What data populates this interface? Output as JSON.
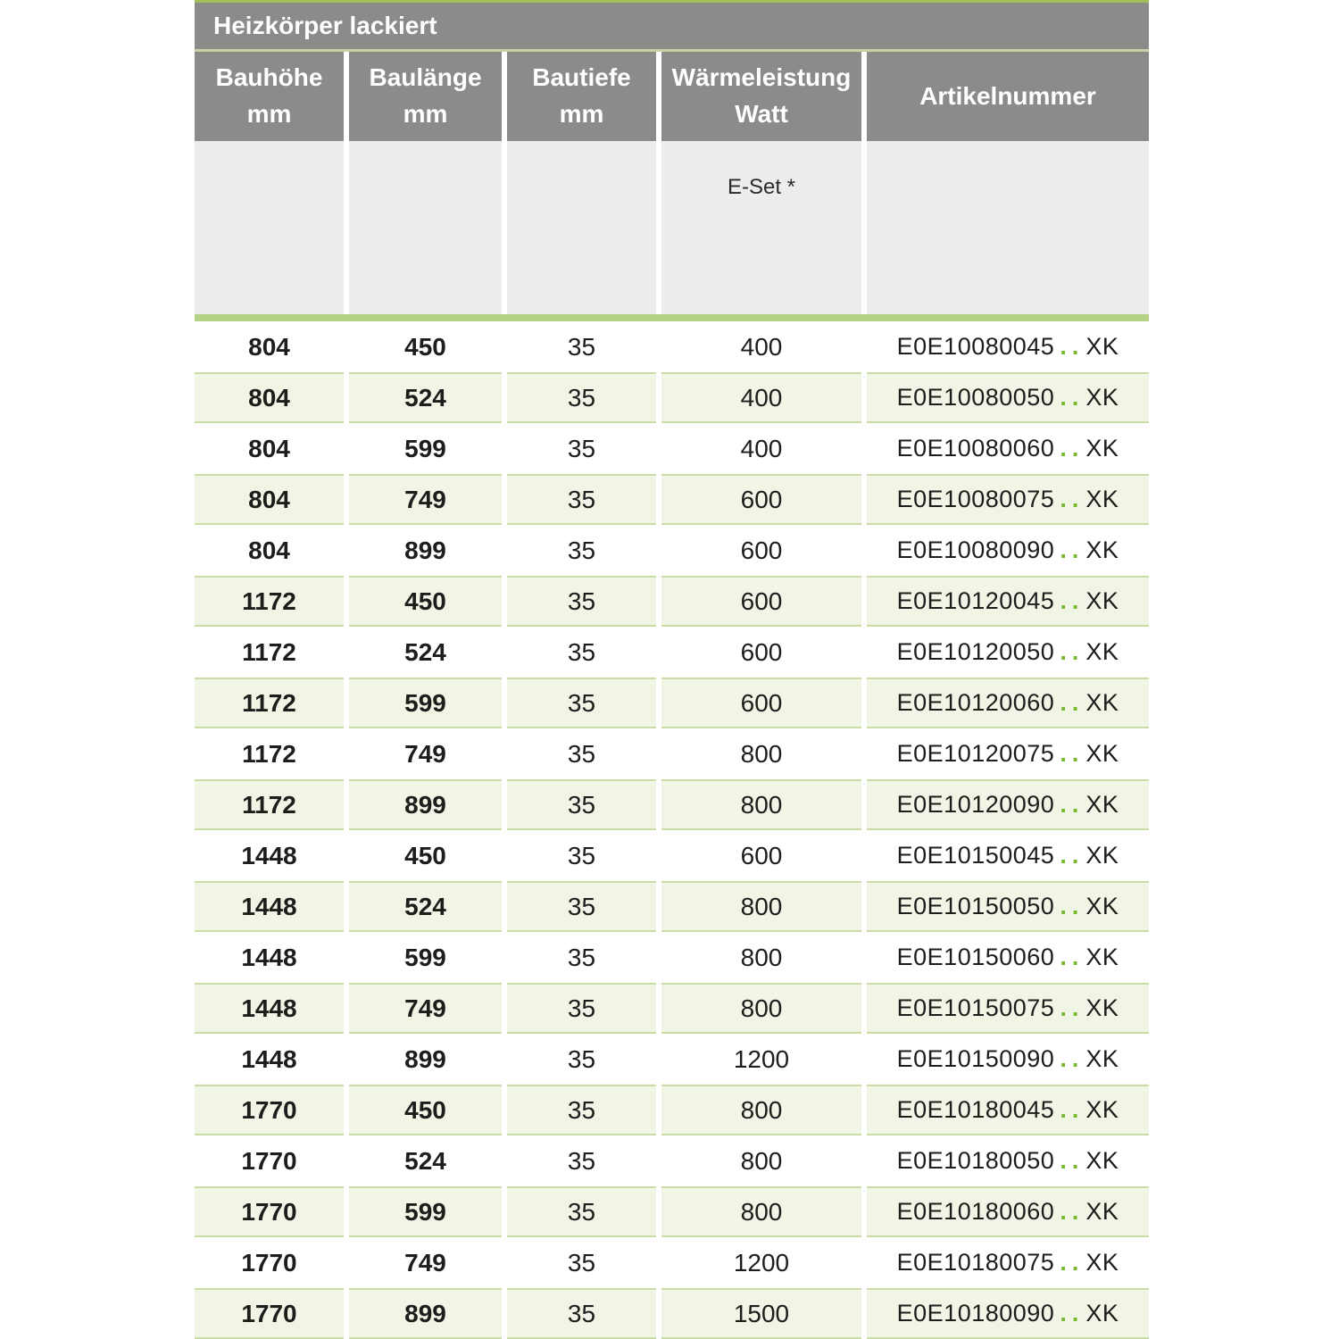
{
  "title": "Heizkörper lackiert",
  "columns": [
    {
      "label": "Bauhöhe",
      "sub": "mm"
    },
    {
      "label": "Baulänge",
      "sub": "mm"
    },
    {
      "label": "Bautiefe",
      "sub": "mm"
    },
    {
      "label": "Wärmeleistung",
      "sub": "Watt"
    },
    {
      "label": "Artikelnummer",
      "sub": ""
    }
  ],
  "subheader": {
    "eset_label": "E-Set *"
  },
  "colors": {
    "header_gray": "#8b8b89",
    "top_green": "#9ec056",
    "separator_pale_green": "#c7d2a4",
    "thick_line_green": "#b5d186",
    "row_green_bg": "#f0f5e6",
    "row_green_border": "#c9dda4",
    "dots_green": "#77b82d",
    "subheader_gray": "#ededed"
  },
  "rows": [
    {
      "bauhoehe": "804",
      "baulaenge": "450",
      "bautiefe": "35",
      "watt": "400",
      "artikel": "E0E10080045",
      "artikel_dots": "..",
      "artikel_suffix": "XK"
    },
    {
      "bauhoehe": "804",
      "baulaenge": "524",
      "bautiefe": "35",
      "watt": "400",
      "artikel": "E0E10080050",
      "artikel_dots": "..",
      "artikel_suffix": "XK"
    },
    {
      "bauhoehe": "804",
      "baulaenge": "599",
      "bautiefe": "35",
      "watt": "400",
      "artikel": "E0E10080060",
      "artikel_dots": "..",
      "artikel_suffix": "XK"
    },
    {
      "bauhoehe": "804",
      "baulaenge": "749",
      "bautiefe": "35",
      "watt": "600",
      "artikel": "E0E10080075",
      "artikel_dots": "..",
      "artikel_suffix": "XK"
    },
    {
      "bauhoehe": "804",
      "baulaenge": "899",
      "bautiefe": "35",
      "watt": "600",
      "artikel": "E0E10080090",
      "artikel_dots": "..",
      "artikel_suffix": "XK"
    },
    {
      "bauhoehe": "1172",
      "baulaenge": "450",
      "bautiefe": "35",
      "watt": "600",
      "artikel": "E0E10120045",
      "artikel_dots": "..",
      "artikel_suffix": "XK"
    },
    {
      "bauhoehe": "1172",
      "baulaenge": "524",
      "bautiefe": "35",
      "watt": "600",
      "artikel": "E0E10120050",
      "artikel_dots": "..",
      "artikel_suffix": "XK"
    },
    {
      "bauhoehe": "1172",
      "baulaenge": "599",
      "bautiefe": "35",
      "watt": "600",
      "artikel": "E0E10120060",
      "artikel_dots": "..",
      "artikel_suffix": "XK"
    },
    {
      "bauhoehe": "1172",
      "baulaenge": "749",
      "bautiefe": "35",
      "watt": "800",
      "artikel": "E0E10120075",
      "artikel_dots": "..",
      "artikel_suffix": "XK"
    },
    {
      "bauhoehe": "1172",
      "baulaenge": "899",
      "bautiefe": "35",
      "watt": "800",
      "artikel": "E0E10120090",
      "artikel_dots": "..",
      "artikel_suffix": "XK"
    },
    {
      "bauhoehe": "1448",
      "baulaenge": "450",
      "bautiefe": "35",
      "watt": "600",
      "artikel": "E0E10150045",
      "artikel_dots": "..",
      "artikel_suffix": "XK"
    },
    {
      "bauhoehe": "1448",
      "baulaenge": "524",
      "bautiefe": "35",
      "watt": "800",
      "artikel": "E0E10150050",
      "artikel_dots": "..",
      "artikel_suffix": "XK"
    },
    {
      "bauhoehe": "1448",
      "baulaenge": "599",
      "bautiefe": "35",
      "watt": "800",
      "artikel": "E0E10150060",
      "artikel_dots": "..",
      "artikel_suffix": "XK"
    },
    {
      "bauhoehe": "1448",
      "baulaenge": "749",
      "bautiefe": "35",
      "watt": "800",
      "artikel": "E0E10150075",
      "artikel_dots": "..",
      "artikel_suffix": "XK"
    },
    {
      "bauhoehe": "1448",
      "baulaenge": "899",
      "bautiefe": "35",
      "watt": "1200",
      "artikel": "E0E10150090",
      "artikel_dots": "..",
      "artikel_suffix": "XK"
    },
    {
      "bauhoehe": "1770",
      "baulaenge": "450",
      "bautiefe": "35",
      "watt": "800",
      "artikel": "E0E10180045",
      "artikel_dots": "..",
      "artikel_suffix": "XK"
    },
    {
      "bauhoehe": "1770",
      "baulaenge": "524",
      "bautiefe": "35",
      "watt": "800",
      "artikel": "E0E10180050",
      "artikel_dots": "..",
      "artikel_suffix": "XK"
    },
    {
      "bauhoehe": "1770",
      "baulaenge": "599",
      "bautiefe": "35",
      "watt": "800",
      "artikel": "E0E10180060",
      "artikel_dots": "..",
      "artikel_suffix": "XK"
    },
    {
      "bauhoehe": "1770",
      "baulaenge": "749",
      "bautiefe": "35",
      "watt": "1200",
      "artikel": "E0E10180075",
      "artikel_dots": "..",
      "artikel_suffix": "XK"
    },
    {
      "bauhoehe": "1770",
      "baulaenge": "899",
      "bautiefe": "35",
      "watt": "1500",
      "artikel": "E0E10180090",
      "artikel_dots": "..",
      "artikel_suffix": "XK"
    }
  ]
}
